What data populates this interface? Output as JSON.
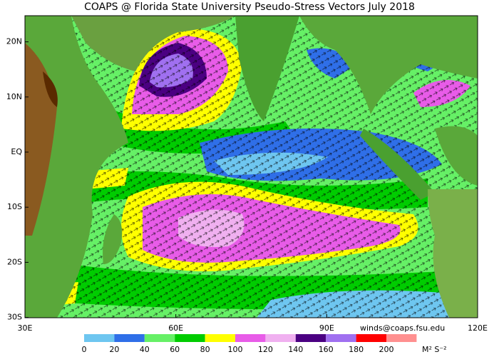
{
  "title": "COAPS @ Florida State University Pseudo-Stress Vectors July 2018",
  "map": {
    "lat_labels": [
      {
        "value": 20,
        "label": "20N"
      },
      {
        "value": 10,
        "label": "10N"
      },
      {
        "value": 0,
        "label": "EQ"
      },
      {
        "value": -10,
        "label": "10S"
      },
      {
        "value": -20,
        "label": "20S"
      },
      {
        "value": -30,
        "label": "30S"
      }
    ],
    "lon_labels": [
      {
        "value": 30,
        "label": "30E"
      },
      {
        "value": 60,
        "label": "60E"
      },
      {
        "value": 90,
        "label": "90E"
      },
      {
        "value": 120,
        "label": "120E"
      }
    ]
  },
  "credit": "winds@coaps.fsu.edu",
  "colorbar": {
    "colors": [
      "#6ec6f0",
      "#2f6fe8",
      "#66f066",
      "#00cc00",
      "#ffff00",
      "#e85ce8",
      "#f0b0f0",
      "#4b0082",
      "#a070f0",
      "#ff0000",
      "#ff9090"
    ],
    "labels": [
      0,
      20,
      40,
      60,
      80,
      100,
      120,
      140,
      160,
      180,
      200
    ],
    "units": "M² S⁻²"
  }
}
